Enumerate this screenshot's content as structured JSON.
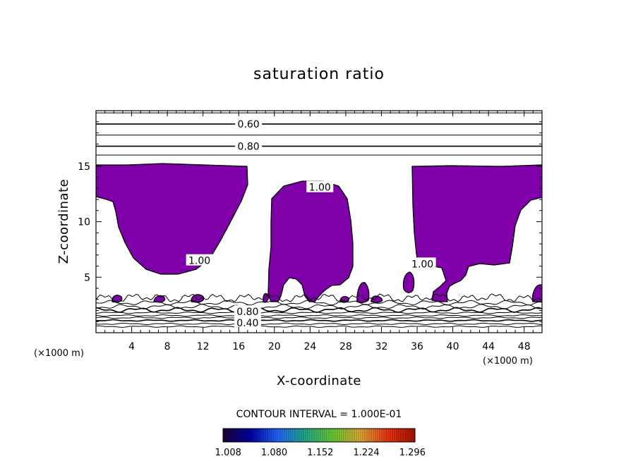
{
  "chart_data": {
    "type": "contour",
    "title": "saturation ratio",
    "xlabel": "X-coordinate",
    "ylabel": "Z-coordinate",
    "x_unit_left": "(×1000 m)",
    "x_unit_right": "(×1000 m)",
    "xlim": [
      0,
      50
    ],
    "ylim": [
      0,
      20
    ],
    "x_ticks": [
      4,
      8,
      12,
      16,
      20,
      24,
      28,
      32,
      36,
      40,
      44,
      48
    ],
    "y_ticks": [
      5,
      10,
      15
    ],
    "fill_color": "#7f00a8",
    "contour_interval_text": "CONTOUR INTERVAL = 1.000E-01",
    "contour_labels": [
      {
        "text": "0.60",
        "x": 17.1,
        "z": 18.8
      },
      {
        "text": "0.80",
        "x": 17.1,
        "z": 16.8
      },
      {
        "text": "1.00",
        "x": 25.1,
        "z": 13.1
      },
      {
        "text": "1.00",
        "x": 11.6,
        "z": 6.5
      },
      {
        "text": "1.00",
        "x": 36.6,
        "z": 6.2
      },
      {
        "text": "0.80",
        "x": 17.0,
        "z": 1.9
      },
      {
        "text": "0.40",
        "x": 17.0,
        "z": 0.9
      }
    ],
    "upper_contour_levels_z": [
      19.8,
      18.8,
      17.8,
      16.8,
      16.0
    ],
    "lower_contour_levels_z": [
      2.7,
      2.35,
      2.05,
      1.8,
      1.55,
      1.35,
      1.1,
      0.8,
      0.55
    ],
    "colorbar": {
      "ticks": [
        "1.008",
        "1.080",
        "1.152",
        "1.224",
        "1.296"
      ],
      "range": [
        1.0,
        1.3
      ],
      "colors": [
        "#1a0033",
        "#0000aa",
        "#2266ff",
        "#22aa88",
        "#66cc33",
        "#ddaa33",
        "#ee3311",
        "#aa1100"
      ]
    }
  }
}
